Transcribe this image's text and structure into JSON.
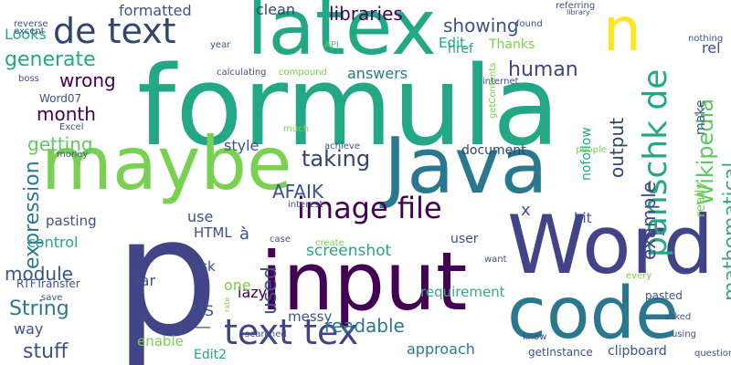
{
  "words": [
    {
      "text": "formula",
      "color": "#22a884",
      "vertical": false
    },
    {
      "text": "p",
      "color": "#414487",
      "vertical": false
    },
    {
      "text": "latex",
      "color": "#22a884",
      "vertical": false
    },
    {
      "text": "maybe",
      "color": "#7ad151",
      "vertical": false
    },
    {
      "text": "Java",
      "color": "#2a788e",
      "vertical": false
    },
    {
      "text": "Word",
      "color": "#414487",
      "vertical": false
    },
    {
      "text": "input",
      "color": "#440154",
      "vertical": false
    },
    {
      "text": "code",
      "color": "#2a788e",
      "vertical": false
    },
    {
      "text": "n",
      "color": "#fde725",
      "vertical": false
    },
    {
      "text": "de text",
      "color": "#30466f",
      "vertical": false
    },
    {
      "text": "image file",
      "color": "#440154",
      "vertical": false
    },
    {
      "text": "text tex",
      "color": "#414487",
      "vertical": false
    },
    {
      "text": "panschk de",
      "color": "#22a884",
      "vertical": true
    },
    {
      "text": "Wikipedia",
      "color": "#5ec962",
      "vertical": true
    },
    {
      "text": "mathematical",
      "color": "#3aa985",
      "vertical": true
    },
    {
      "text": "expression",
      "color": "#2a788e",
      "vertical": true
    },
    {
      "text": "example",
      "color": "#414487",
      "vertical": true
    },
    {
      "text": "output",
      "color": "#30466f",
      "vertical": true
    },
    {
      "text": "used",
      "color": "#3b528b",
      "vertical": true
    },
    {
      "text": "generate",
      "color": "#22a884",
      "vertical": false
    },
    {
      "text": "human",
      "color": "#414487",
      "vertical": false
    },
    {
      "text": "month",
      "color": "#440154",
      "vertical": false
    },
    {
      "text": "wrong",
      "color": "#440154",
      "vertical": false
    },
    {
      "text": "getting",
      "color": "#5ec962",
      "vertical": false
    },
    {
      "text": "taking",
      "color": "#30466f",
      "vertical": false
    },
    {
      "text": "module",
      "color": "#3b528b",
      "vertical": false
    },
    {
      "text": "String",
      "color": "#2a788e",
      "vertical": false
    },
    {
      "text": "stuff",
      "color": "#3b528b",
      "vertical": false
    },
    {
      "text": "readable",
      "color": "#2a788e",
      "vertical": false
    },
    {
      "text": "approach",
      "color": "#2a788e",
      "vertical": false
    },
    {
      "text": "showing",
      "color": "#3b528b",
      "vertical": false
    },
    {
      "text": "libraries",
      "color": "#440154",
      "vertical": false
    },
    {
      "text": "Looks",
      "color": "#22a884",
      "vertical": false
    },
    {
      "text": "formatted",
      "color": "#3b528b",
      "vertical": false
    },
    {
      "text": "clean",
      "color": "#30466f",
      "vertical": false
    },
    {
      "text": "href",
      "color": "#22a884",
      "vertical": false
    },
    {
      "text": "Edit",
      "color": "#22a884",
      "vertical": false
    },
    {
      "text": "Thanks",
      "color": "#7ad151",
      "vertical": false
    },
    {
      "text": "answers",
      "color": "#2a788e",
      "vertical": false
    },
    {
      "text": "document",
      "color": "#30466f",
      "vertical": false
    },
    {
      "text": "style",
      "color": "#3b528b",
      "vertical": false
    },
    {
      "text": "AFAIK",
      "color": "#3b528b",
      "vertical": false
    },
    {
      "text": "control",
      "color": "#22a884",
      "vertical": false
    },
    {
      "text": "pasting",
      "color": "#3b528b",
      "vertical": false
    },
    {
      "text": "screenshot",
      "color": "#22a884",
      "vertical": false
    },
    {
      "text": "requirement",
      "color": "#3aa985",
      "vertical": false
    },
    {
      "text": "messy",
      "color": "#3b528b",
      "vertical": false
    },
    {
      "text": "lazy",
      "color": "#440154",
      "vertical": false
    },
    {
      "text": "ask",
      "color": "#3b528b",
      "vertical": false
    },
    {
      "text": "far",
      "color": "#3b528b",
      "vertical": false
    },
    {
      "text": "MS",
      "color": "#3b528b",
      "vertical": false
    },
    {
      "text": "one",
      "color": "#7ad151",
      "vertical": false
    },
    {
      "text": "HTML",
      "color": "#3b528b",
      "vertical": false
    },
    {
      "text": "way",
      "color": "#3b528b",
      "vertical": false
    },
    {
      "text": "enable",
      "color": "#7ad151",
      "vertical": false
    },
    {
      "text": "bit",
      "color": "#3b528b",
      "vertical": false
    },
    {
      "text": "user",
      "color": "#3b528b",
      "vertical": false
    },
    {
      "text": "x",
      "color": "#3b528b",
      "vertical": false
    },
    {
      "text": "à",
      "color": "#3b528b",
      "vertical": false
    },
    {
      "text": "use",
      "color": "#3b528b",
      "vertical": false
    },
    {
      "text": "—",
      "color": "#3b528b",
      "vertical": false
    },
    {
      "text": "pasted",
      "color": "#3b528b",
      "vertical": false
    },
    {
      "text": "nofollow",
      "color": "#22a884",
      "vertical": true
    },
    {
      "text": "make",
      "color": "#3b528b",
      "vertical": true
    },
    {
      "text": "really",
      "color": "#7ad151",
      "vertical": true
    },
    {
      "text": "rel",
      "color": "#3b528b",
      "vertical": false
    },
    {
      "text": "Edit2",
      "color": "#22a884",
      "vertical": false
    },
    {
      "text": "getInstance",
      "color": "#3b528b",
      "vertical": false
    },
    {
      "text": "clipboard",
      "color": "#3b528b",
      "vertical": false
    },
    {
      "text": "RTFTransfer",
      "color": "#3b528b",
      "vertical": false
    },
    {
      "text": "Word07",
      "color": "#3b528b",
      "vertical": false
    },
    {
      "text": "calculating",
      "color": "#3b528b",
      "vertical": false
    },
    {
      "text": "compound",
      "color": "#7ad151",
      "vertical": false
    },
    {
      "text": "getContents",
      "color": "#7ad151",
      "vertical": true
    },
    {
      "text": "Excel",
      "color": "#3b528b",
      "vertical": false
    },
    {
      "text": "money",
      "color": "#3b528b",
      "vertical": false
    },
    {
      "text": "boss",
      "color": "#3b528b",
      "vertical": false
    },
    {
      "text": "reverse",
      "color": "#3b528b",
      "vertical": false
    },
    {
      "text": "except",
      "color": "#3b528b",
      "vertical": false
    },
    {
      "text": "year",
      "color": "#3b528b",
      "vertical": false
    },
    {
      "text": "API",
      "color": "#5ec962",
      "vertical": false
    },
    {
      "text": "found",
      "color": "#3b528b",
      "vertical": false
    },
    {
      "text": "internet",
      "color": "#3b528b",
      "vertical": false
    },
    {
      "text": "referring",
      "color": "#3b528b",
      "vertical": false
    },
    {
      "text": "library",
      "color": "#3b528b",
      "vertical": false
    },
    {
      "text": "nothing",
      "color": "#3b528b",
      "vertical": false
    },
    {
      "text": "much",
      "color": "#7ad151",
      "vertical": false
    },
    {
      "text": "achieve",
      "color": "#3b528b",
      "vertical": false
    },
    {
      "text": "people",
      "color": "#7ad151",
      "vertical": false
    },
    {
      "text": "interest",
      "color": "#3b528b",
      "vertical": false
    },
    {
      "text": "case",
      "color": "#3b528b",
      "vertical": false
    },
    {
      "text": "create",
      "color": "#7ad151",
      "vertical": false
    },
    {
      "text": "want",
      "color": "#3b528b",
      "vertical": false
    },
    {
      "text": "every",
      "color": "#7ad151",
      "vertical": false
    },
    {
      "text": "save",
      "color": "#3b528b",
      "vertical": false
    },
    {
      "text": "rate",
      "color": "#7ad151",
      "vertical": true
    },
    {
      "text": "searched",
      "color": "#3b528b",
      "vertical": false
    },
    {
      "text": "know",
      "color": "#3b528b",
      "vertical": false
    },
    {
      "text": "using",
      "color": "#3b528b",
      "vertical": false
    },
    {
      "text": "asked",
      "color": "#3b528b",
      "vertical": false
    },
    {
      "text": "question",
      "color": "#3b528b",
      "vertical": false
    }
  ]
}
